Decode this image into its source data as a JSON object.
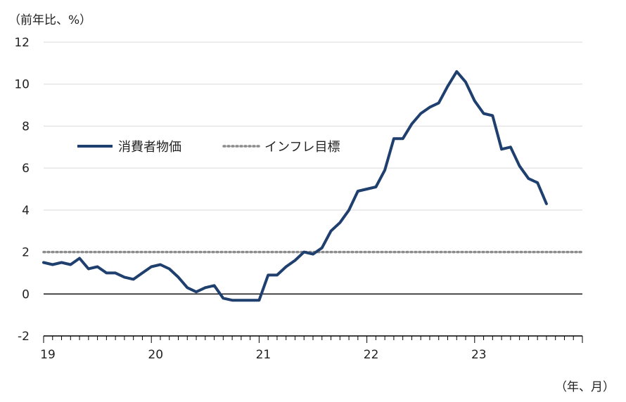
{
  "chart_data": {
    "type": "line",
    "ylabel": "（前年比、%）",
    "xlabel": "（年、月）",
    "ylim": [
      -2,
      12
    ],
    "yticks": [
      -2,
      0,
      2,
      4,
      6,
      8,
      10,
      12
    ],
    "xtick_labels": [
      "19",
      "20",
      "21",
      "22",
      "23"
    ],
    "grid": true,
    "legend_position": "upper-left",
    "series": [
      {
        "name": "消費者物価",
        "color": "#1f3f6e",
        "style": "solid",
        "x": [
          "2019-01",
          "2019-02",
          "2019-03",
          "2019-04",
          "2019-05",
          "2019-06",
          "2019-07",
          "2019-08",
          "2019-09",
          "2019-10",
          "2019-11",
          "2019-12",
          "2020-01",
          "2020-02",
          "2020-03",
          "2020-04",
          "2020-05",
          "2020-06",
          "2020-07",
          "2020-08",
          "2020-09",
          "2020-10",
          "2020-11",
          "2020-12",
          "2021-01",
          "2021-02",
          "2021-03",
          "2021-04",
          "2021-05",
          "2021-06",
          "2021-07",
          "2021-08",
          "2021-09",
          "2021-10",
          "2021-11",
          "2021-12",
          "2022-01",
          "2022-02",
          "2022-03",
          "2022-04",
          "2022-05",
          "2022-06",
          "2022-07",
          "2022-08",
          "2022-09",
          "2022-10",
          "2022-11",
          "2022-12",
          "2023-01",
          "2023-02",
          "2023-03",
          "2023-04",
          "2023-05",
          "2023-06",
          "2023-07",
          "2023-08",
          "2023-09"
        ],
        "values": [
          1.5,
          1.4,
          1.5,
          1.4,
          1.7,
          1.2,
          1.3,
          1.0,
          1.0,
          0.8,
          0.7,
          1.0,
          1.3,
          1.4,
          1.2,
          0.8,
          0.3,
          0.1,
          0.3,
          0.4,
          -0.2,
          -0.3,
          -0.3,
          -0.3,
          -0.3,
          0.9,
          0.9,
          1.3,
          1.6,
          2.0,
          1.9,
          2.2,
          3.0,
          3.4,
          4.0,
          4.9,
          5.0,
          5.1,
          5.9,
          7.4,
          7.4,
          8.1,
          8.6,
          8.9,
          9.1,
          9.9,
          10.6,
          10.1,
          9.2,
          8.6,
          8.5,
          6.9,
          7.0,
          6.1,
          5.5,
          5.3,
          4.3
        ]
      },
      {
        "name": "インフレ目標",
        "color": "#8c8c8c",
        "style": "dotted",
        "values": [
          2,
          2
        ]
      }
    ]
  }
}
